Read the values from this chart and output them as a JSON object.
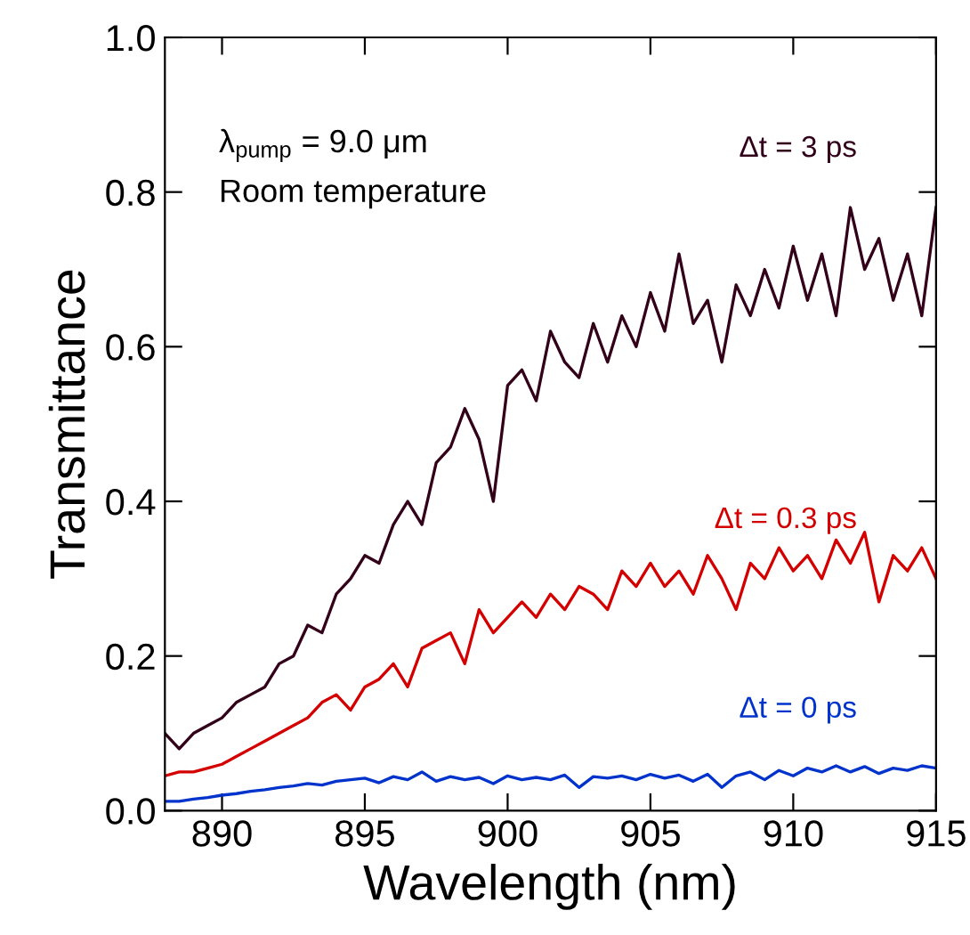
{
  "chart_data": {
    "type": "line",
    "xlabel": "Wavelength (nm)",
    "ylabel": "Transmittance",
    "annotations": [
      "λ$_{pump}$ = 9.0 μm",
      "Room temperature"
    ],
    "xlim": [
      888,
      915
    ],
    "ylim": [
      0,
      1
    ],
    "xticks": [
      890,
      895,
      900,
      905,
      910,
      915
    ],
    "yticks": [
      {
        "value": 0,
        "label": "0.0"
      },
      {
        "value": 0.2,
        "label": "0.2"
      },
      {
        "value": 0.4,
        "label": "0.4"
      },
      {
        "value": 0.6,
        "label": "0.6"
      },
      {
        "value": 0.8,
        "label": "0.8"
      },
      {
        "value": 1,
        "label": "1.0"
      }
    ],
    "grid": false,
    "legend": false,
    "marker": "none",
    "line_style": "solid",
    "x": [
      888.0,
      888.5,
      889.0,
      889.5,
      890.0,
      890.5,
      891.0,
      891.5,
      892.0,
      892.5,
      893.0,
      893.5,
      894.0,
      894.5,
      895.0,
      895.5,
      896.0,
      896.5,
      897.0,
      897.5,
      898.0,
      898.5,
      899.0,
      899.5,
      900.0,
      900.5,
      901.0,
      901.5,
      902.0,
      902.5,
      903.0,
      903.5,
      904.0,
      904.5,
      905.0,
      905.5,
      906.0,
      906.5,
      907.0,
      907.5,
      908.0,
      908.5,
      909.0,
      909.5,
      910.0,
      910.5,
      911.0,
      911.5,
      912.0,
      912.5,
      913.0,
      913.5,
      914.0,
      914.5,
      915.0
    ],
    "series": [
      {
        "name": "Δt = 3 ps",
        "color": "#33001a",
        "values": [
          0.1,
          0.08,
          0.1,
          0.11,
          0.12,
          0.14,
          0.15,
          0.16,
          0.19,
          0.2,
          0.24,
          0.23,
          0.28,
          0.3,
          0.33,
          0.32,
          0.37,
          0.4,
          0.37,
          0.45,
          0.47,
          0.52,
          0.48,
          0.4,
          0.55,
          0.57,
          0.53,
          0.62,
          0.58,
          0.56,
          0.63,
          0.58,
          0.64,
          0.6,
          0.67,
          0.62,
          0.72,
          0.63,
          0.66,
          0.58,
          0.68,
          0.64,
          0.7,
          0.65,
          0.73,
          0.66,
          0.72,
          0.64,
          0.78,
          0.7,
          0.74,
          0.66,
          0.72,
          0.64,
          0.78
        ]
      },
      {
        "name": "Δt = 0.3 ps",
        "color": "#d40000",
        "values": [
          0.045,
          0.05,
          0.05,
          0.055,
          0.06,
          0.07,
          0.08,
          0.09,
          0.1,
          0.11,
          0.12,
          0.14,
          0.15,
          0.13,
          0.16,
          0.17,
          0.19,
          0.16,
          0.21,
          0.22,
          0.23,
          0.19,
          0.26,
          0.23,
          0.25,
          0.27,
          0.25,
          0.28,
          0.26,
          0.29,
          0.28,
          0.26,
          0.31,
          0.29,
          0.32,
          0.29,
          0.31,
          0.28,
          0.33,
          0.3,
          0.26,
          0.32,
          0.3,
          0.34,
          0.31,
          0.33,
          0.3,
          0.35,
          0.32,
          0.36,
          0.27,
          0.33,
          0.31,
          0.34,
          0.3
        ]
      },
      {
        "name": "Δt = 0 ps",
        "color": "#0033cc",
        "values": [
          0.012,
          0.012,
          0.015,
          0.017,
          0.02,
          0.022,
          0.025,
          0.027,
          0.03,
          0.032,
          0.035,
          0.033,
          0.038,
          0.04,
          0.042,
          0.036,
          0.044,
          0.04,
          0.05,
          0.038,
          0.044,
          0.04,
          0.043,
          0.035,
          0.045,
          0.04,
          0.043,
          0.04,
          0.046,
          0.03,
          0.044,
          0.042,
          0.045,
          0.04,
          0.047,
          0.042,
          0.046,
          0.038,
          0.047,
          0.03,
          0.045,
          0.05,
          0.04,
          0.052,
          0.045,
          0.055,
          0.05,
          0.058,
          0.05,
          0.057,
          0.048,
          0.055,
          0.052,
          0.058,
          0.055
        ]
      }
    ]
  }
}
